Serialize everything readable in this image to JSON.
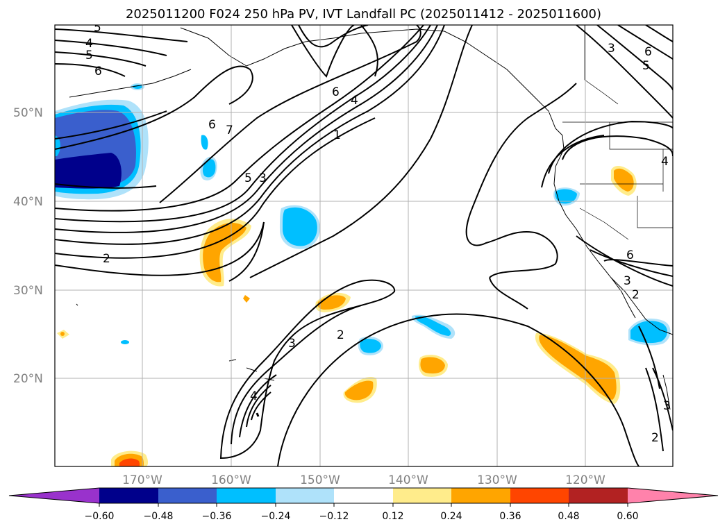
{
  "title": "2025011200 F024 250 hPa PV, IVT Landfall PC (2025011412 - 2025011600)",
  "lat_labels": [
    "50°N",
    "40°N",
    "30°N",
    "20°N"
  ],
  "lon_labels": [
    "170°W",
    "160°W",
    "150°W",
    "140°W",
    "130°W",
    "120°W"
  ],
  "colorbar": {
    "colors": [
      "#9932cc",
      "#00008b",
      "#3a5fcd",
      "#00bfff",
      "#afe2fa",
      "#ffffff",
      "#ffec8b",
      "#ffa500",
      "#ff4500",
      "#b22222",
      "#ff82ab"
    ],
    "tick_labels": [
      "−0.60",
      "−0.48",
      "−0.36",
      "−0.24",
      "−0.12",
      "0.12",
      "0.24",
      "0.36",
      "0.48",
      "0.60"
    ]
  },
  "contour_labels": [
    "5",
    "4",
    "5",
    "6",
    "6",
    "4",
    "1",
    "6",
    "7",
    "5",
    "3",
    "2",
    "3",
    "2",
    "4",
    "6",
    "5",
    "3",
    "4",
    "6",
    "3",
    "2",
    "3",
    "2"
  ]
}
